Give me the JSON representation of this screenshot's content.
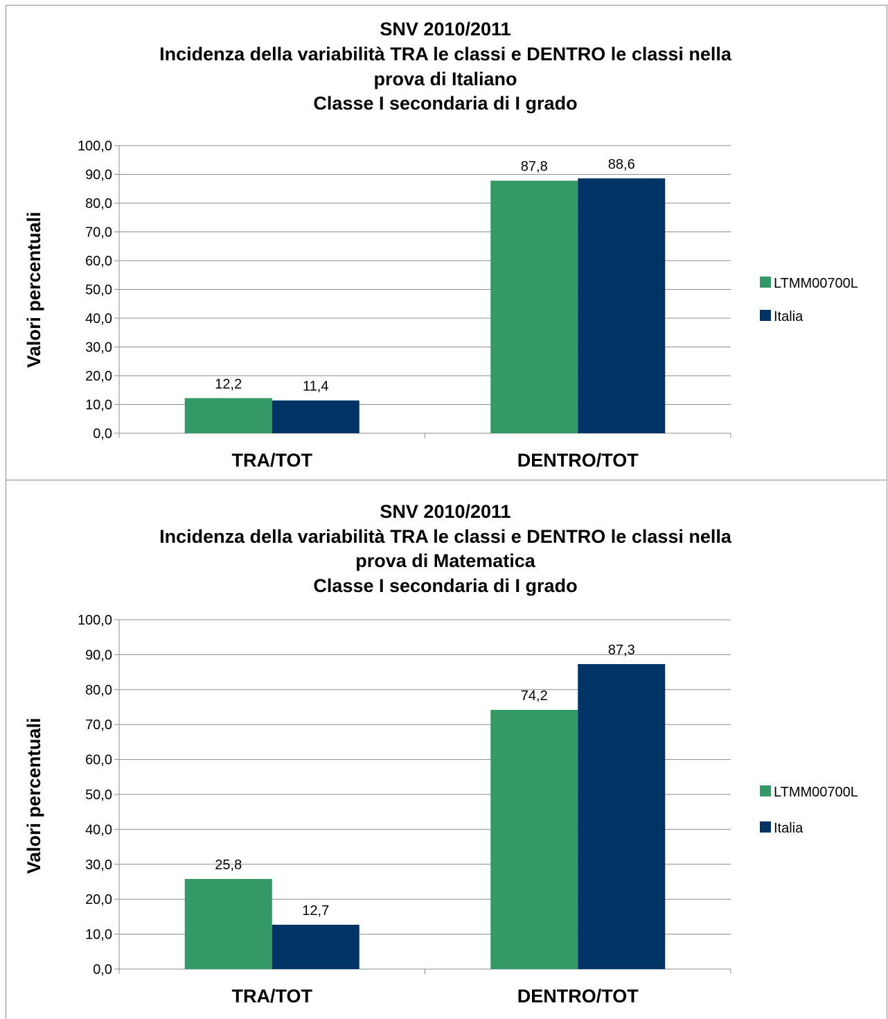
{
  "chart_data": [
    {
      "type": "bar",
      "title_lines": [
        "SNV 2010/2011",
        "Incidenza della variabilità TRA le classi e DENTRO le classi nella",
        "prova di Italiano",
        "Classe I secondaria di I grado"
      ],
      "ylabel": "Valori percentuali",
      "xlabel": "",
      "categories": [
        "TRA/TOT",
        "DENTRO/TOT"
      ],
      "series": [
        {
          "name": "LTMM00700L",
          "color": "#339966",
          "values": [
            12.2,
            87.8
          ],
          "labels": [
            "12,2",
            "87,8"
          ]
        },
        {
          "name": "Italia",
          "color": "#003366",
          "values": [
            11.4,
            88.6
          ],
          "labels": [
            "11,4",
            "88,6"
          ]
        }
      ],
      "ylim": [
        0,
        100
      ],
      "yticks": [
        "0,0",
        "10,0",
        "20,0",
        "30,0",
        "40,0",
        "50,0",
        "60,0",
        "70,0",
        "80,0",
        "90,0",
        "100,0"
      ],
      "grid": true,
      "legend_position": "right"
    },
    {
      "type": "bar",
      "title_lines": [
        "SNV 2010/2011",
        "Incidenza della variabilità TRA le classi e DENTRO le classi nella",
        "prova di Matematica",
        "Classe I secondaria di I grado"
      ],
      "ylabel": "Valori percentuali",
      "xlabel": "",
      "categories": [
        "TRA/TOT",
        "DENTRO/TOT"
      ],
      "series": [
        {
          "name": "LTMM00700L",
          "color": "#339966",
          "values": [
            25.8,
            74.2
          ],
          "labels": [
            "25,8",
            "74,2"
          ]
        },
        {
          "name": "Italia",
          "color": "#003366",
          "values": [
            12.7,
            87.3
          ],
          "labels": [
            "12,7",
            "87,3"
          ]
        }
      ],
      "ylim": [
        0,
        100
      ],
      "yticks": [
        "0,0",
        "10,0",
        "20,0",
        "30,0",
        "40,0",
        "50,0",
        "60,0",
        "70,0",
        "80,0",
        "90,0",
        "100,0"
      ],
      "grid": true,
      "legend_position": "right"
    }
  ]
}
